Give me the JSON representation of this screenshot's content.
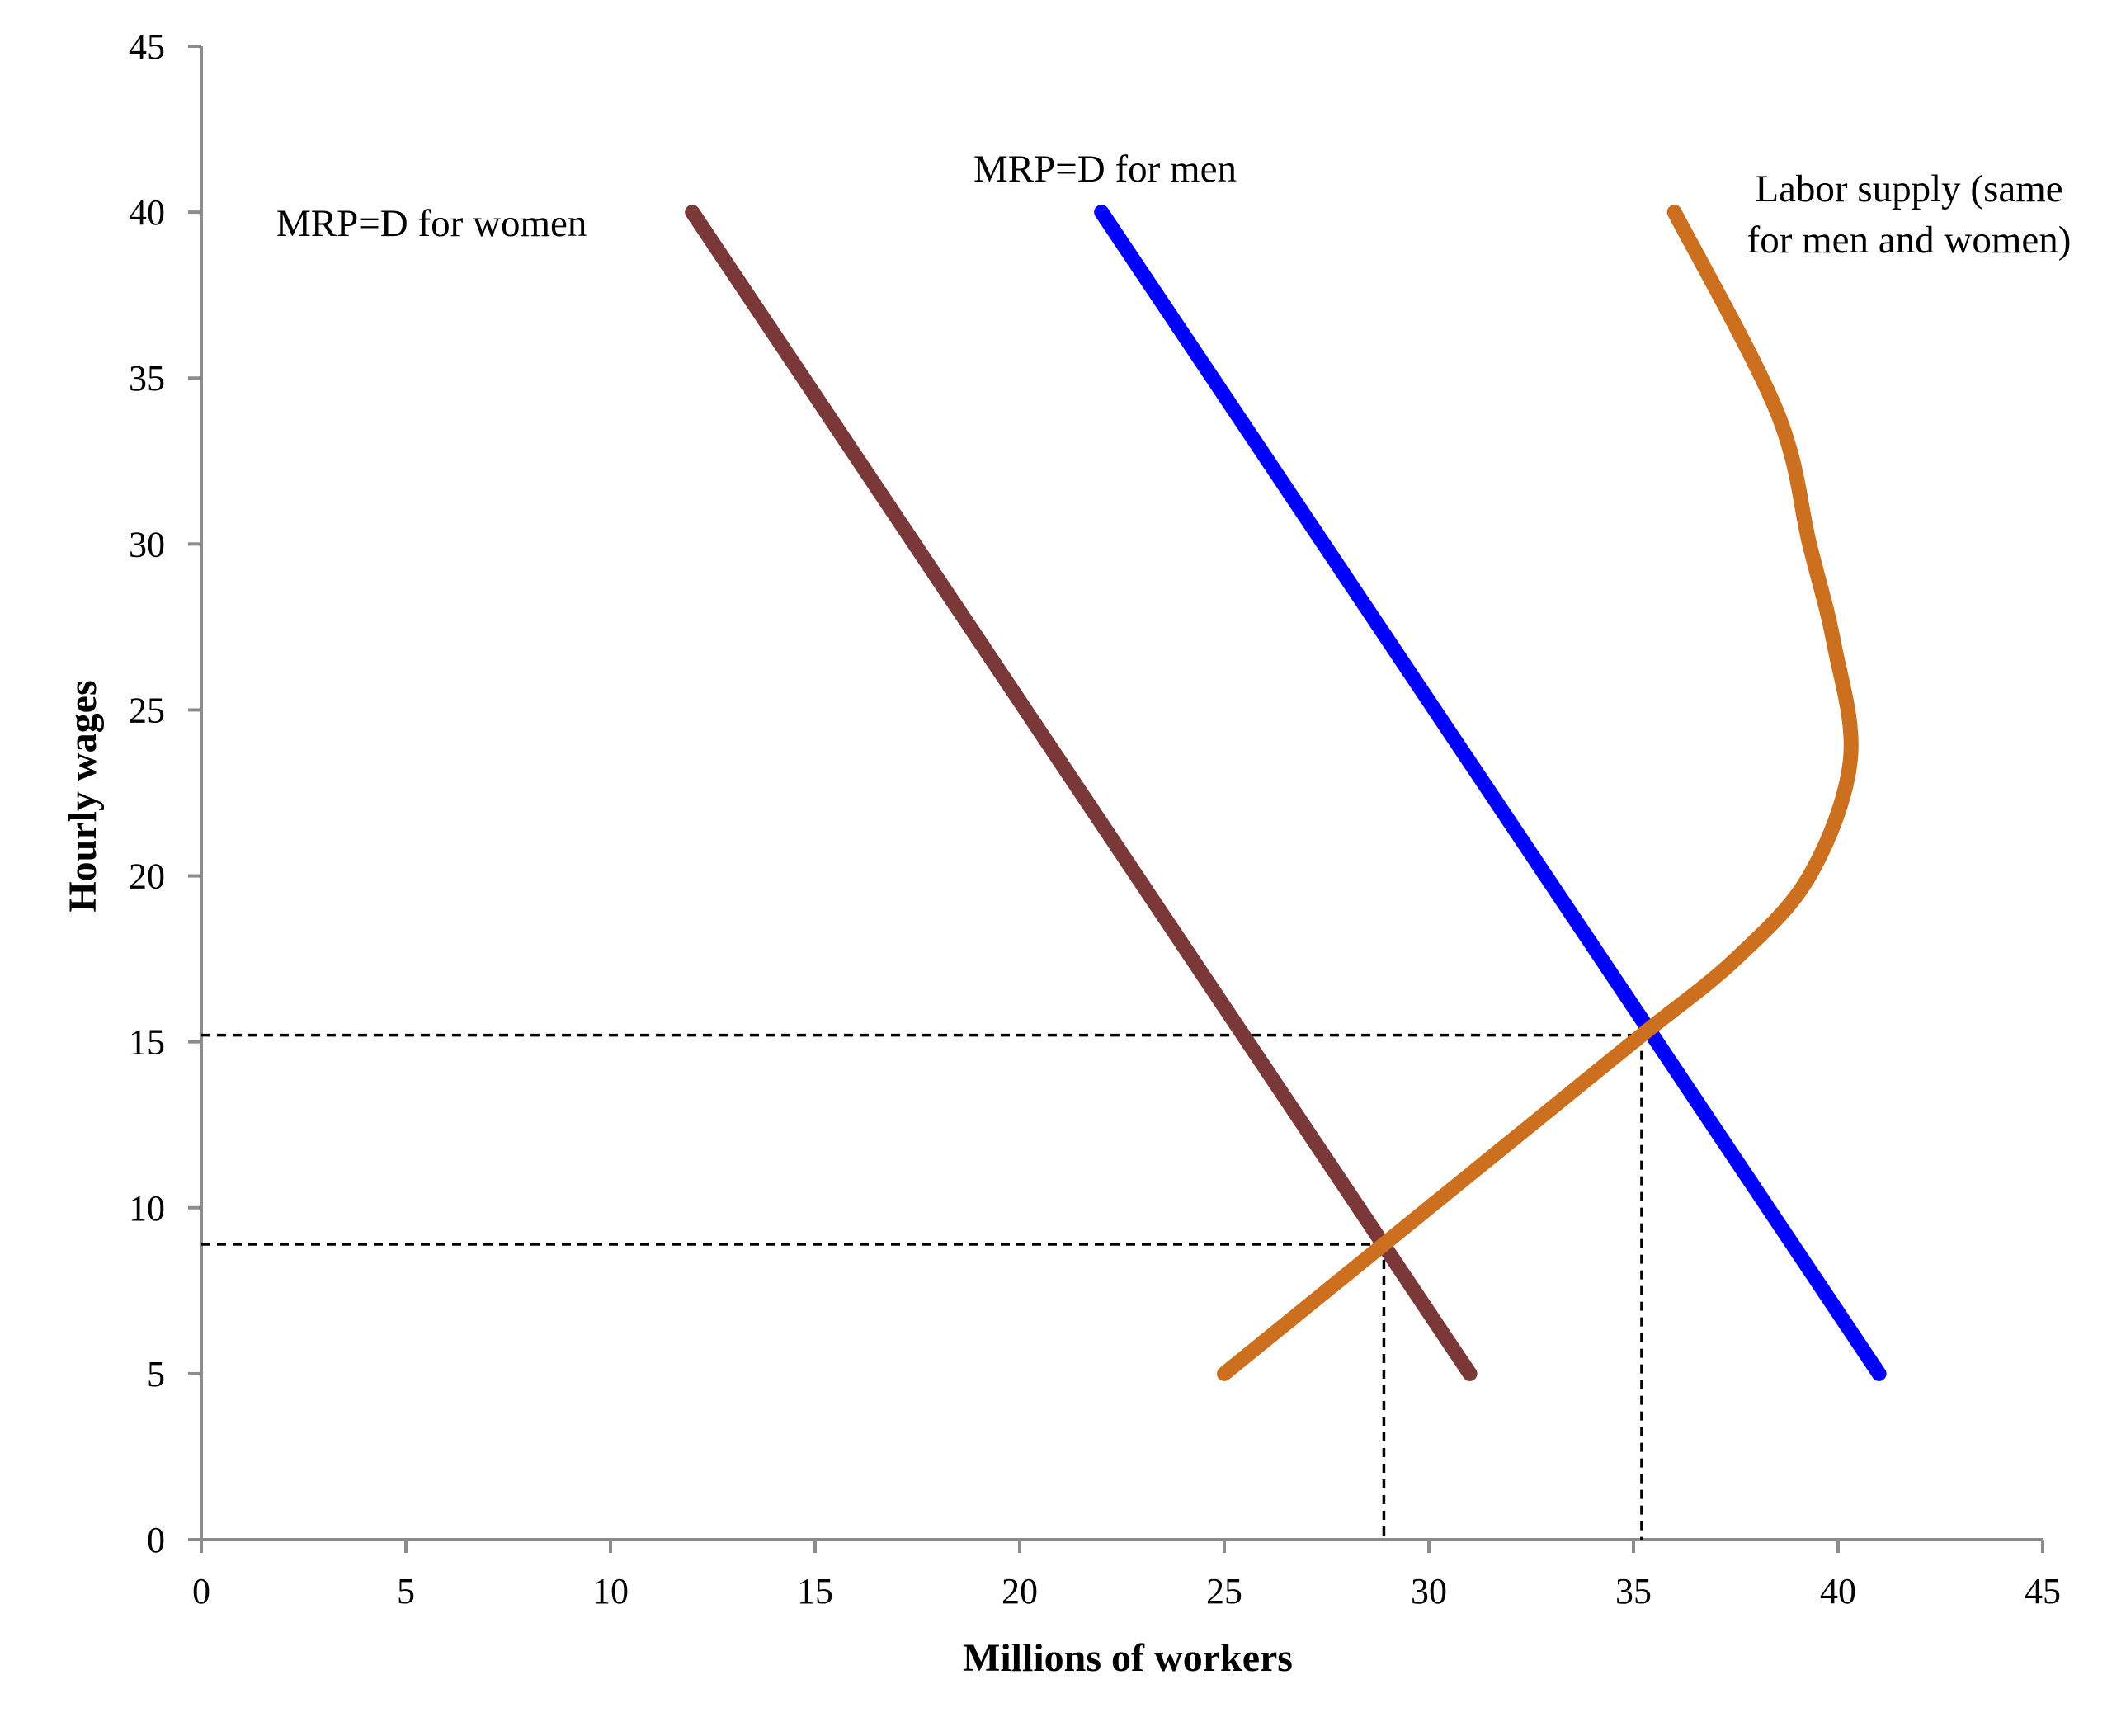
{
  "chart_data": {
    "type": "line",
    "xlabel": "Millions of workers",
    "ylabel": "Hourly wages",
    "xlim": [
      0,
      45
    ],
    "ylim": [
      0,
      45
    ],
    "xticks": [
      "0",
      "5",
      "10",
      "15",
      "20",
      "25",
      "30",
      "35",
      "40",
      "45"
    ],
    "yticks": [
      "0",
      "5",
      "10",
      "15",
      "20",
      "25",
      "30",
      "35",
      "40",
      "45"
    ],
    "grid": false,
    "series": [
      {
        "key": "women_demand",
        "label": "MRP=D for women",
        "color": "#7a3838",
        "points": [
          [
            12,
            40
          ],
          [
            31,
            5
          ]
        ]
      },
      {
        "key": "men_demand",
        "label": "MRP=D for men",
        "color": "#0000ff",
        "points": [
          [
            22,
            40
          ],
          [
            41,
            5
          ]
        ]
      },
      {
        "key": "labor_supply",
        "label_lines": [
          "Labor supply (same",
          "for men and women)"
        ],
        "color": "#cc6f1f",
        "curve_points": [
          [
            25,
            5
          ],
          [
            29,
            9
          ],
          [
            32.5,
            12.5
          ],
          [
            35.2,
            15.2
          ],
          [
            37.5,
            17.5
          ],
          [
            39.3,
            20
          ],
          [
            40.3,
            23.5
          ],
          [
            39.9,
            27
          ],
          [
            39.3,
            30
          ],
          [
            38.5,
            34
          ],
          [
            36,
            40
          ]
        ]
      }
    ],
    "reference_points": [
      {
        "x": 28.9,
        "y": 8.9
      },
      {
        "x": 35.2,
        "y": 15.2
      }
    ]
  }
}
